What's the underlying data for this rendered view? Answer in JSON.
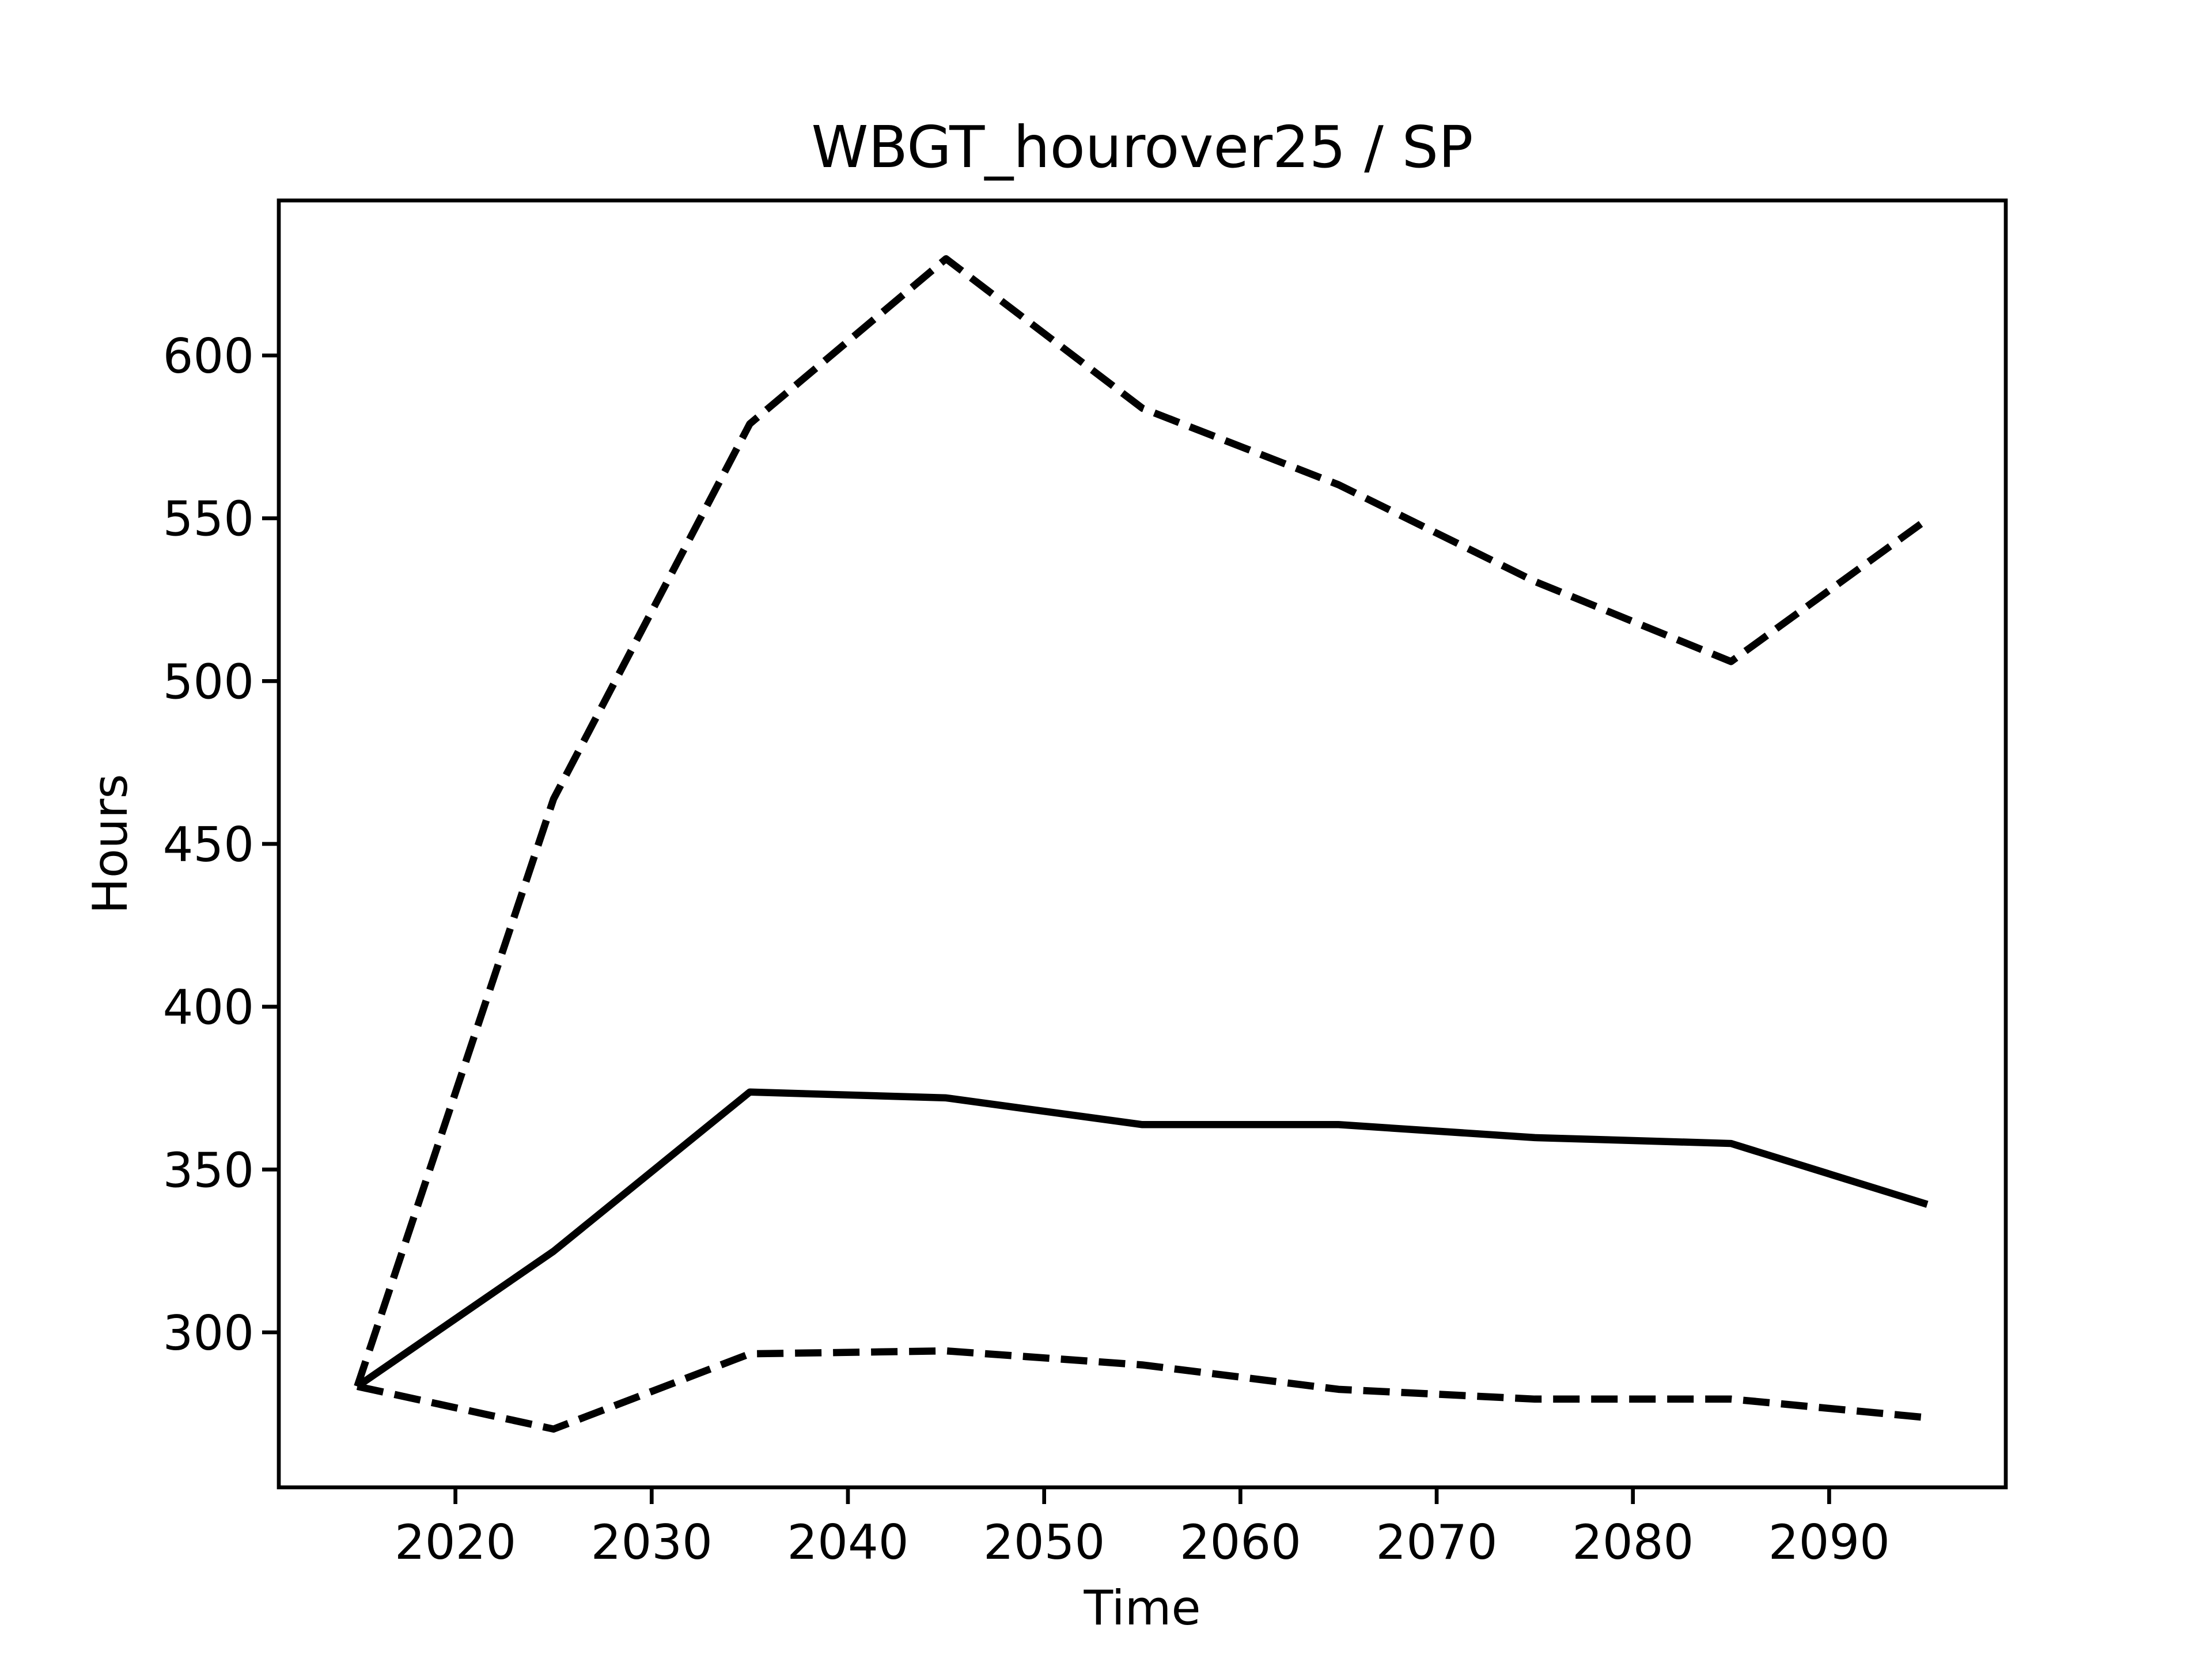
{
  "chart_data": {
    "type": "line",
    "title": "WBGT_hourover25 / SP",
    "xlabel": "Time",
    "ylabel": "Hours",
    "x": [
      2015,
      2025,
      2035,
      2045,
      2055,
      2065,
      2075,
      2085,
      2095
    ],
    "series": [
      {
        "color": "#000000",
        "dashed": false,
        "values": [
          283.4,
          324.9,
          373.8,
          372.0,
          363.8,
          363.8,
          359.8,
          358.0,
          339.3
        ]
      },
      {
        "color": "#000000",
        "dashed": true,
        "values": [
          283.4,
          463.8,
          579.0,
          629.7,
          583.8,
          560.3,
          530.6,
          506.0,
          549.7
        ]
      },
      {
        "color": "#000000",
        "dashed": true,
        "values": [
          283.4,
          270.3,
          293.4,
          294.3,
          290.0,
          282.5,
          279.5,
          279.5,
          273.8
        ]
      }
    ],
    "xlim": [
      2011,
      2099
    ],
    "ylim": [
      252.4,
      647.6
    ],
    "xticks": [
      2020,
      2030,
      2040,
      2050,
      2060,
      2070,
      2080,
      2090
    ],
    "yticks": [
      300,
      350,
      400,
      450,
      500,
      550,
      600
    ],
    "grid": false
  }
}
